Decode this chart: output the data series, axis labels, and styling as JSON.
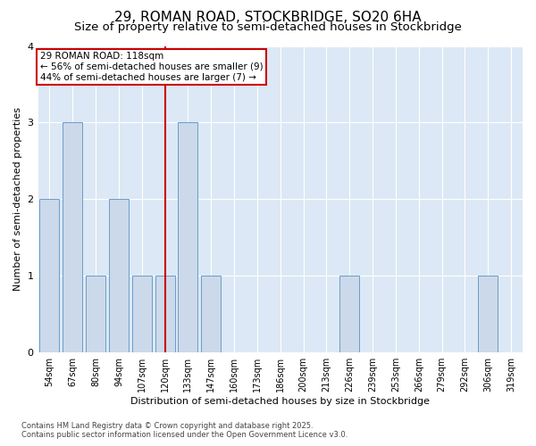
{
  "title_line1": "29, ROMAN ROAD, STOCKBRIDGE, SO20 6HA",
  "title_line2": "Size of property relative to semi-detached houses in Stockbridge",
  "xlabel": "Distribution of semi-detached houses by size in Stockbridge",
  "ylabel": "Number of semi-detached properties",
  "categories": [
    "54sqm",
    "67sqm",
    "80sqm",
    "94sqm",
    "107sqm",
    "120sqm",
    "133sqm",
    "147sqm",
    "160sqm",
    "173sqm",
    "186sqm",
    "200sqm",
    "213sqm",
    "226sqm",
    "239sqm",
    "253sqm",
    "266sqm",
    "279sqm",
    "292sqm",
    "306sqm",
    "319sqm"
  ],
  "values": [
    2,
    3,
    1,
    2,
    1,
    1,
    3,
    1,
    0,
    0,
    0,
    0,
    0,
    1,
    0,
    0,
    0,
    0,
    0,
    1,
    0
  ],
  "bar_color": "#ccd9ea",
  "bar_edge_color": "#6b9dc8",
  "highlight_index": 5,
  "highlight_color": "#cc0000",
  "annotation_line1": "29 ROMAN ROAD: 118sqm",
  "annotation_line2": "← 56% of semi-detached houses are smaller (9)",
  "annotation_line3": "44% of semi-detached houses are larger (7) →",
  "annotation_box_color": "#cc0000",
  "ylim": [
    0,
    4
  ],
  "yticks": [
    0,
    1,
    2,
    3,
    4
  ],
  "plot_bg_color": "#dce8f5",
  "grid_color": "#ffffff",
  "footer_line1": "Contains HM Land Registry data © Crown copyright and database right 2025.",
  "footer_line2": "Contains public sector information licensed under the Open Government Licence v3.0.",
  "title_fontsize": 11,
  "subtitle_fontsize": 9.5,
  "tick_fontsize": 7,
  "ylabel_fontsize": 8,
  "xlabel_fontsize": 8,
  "footer_fontsize": 6,
  "annotation_fontsize": 7.5
}
